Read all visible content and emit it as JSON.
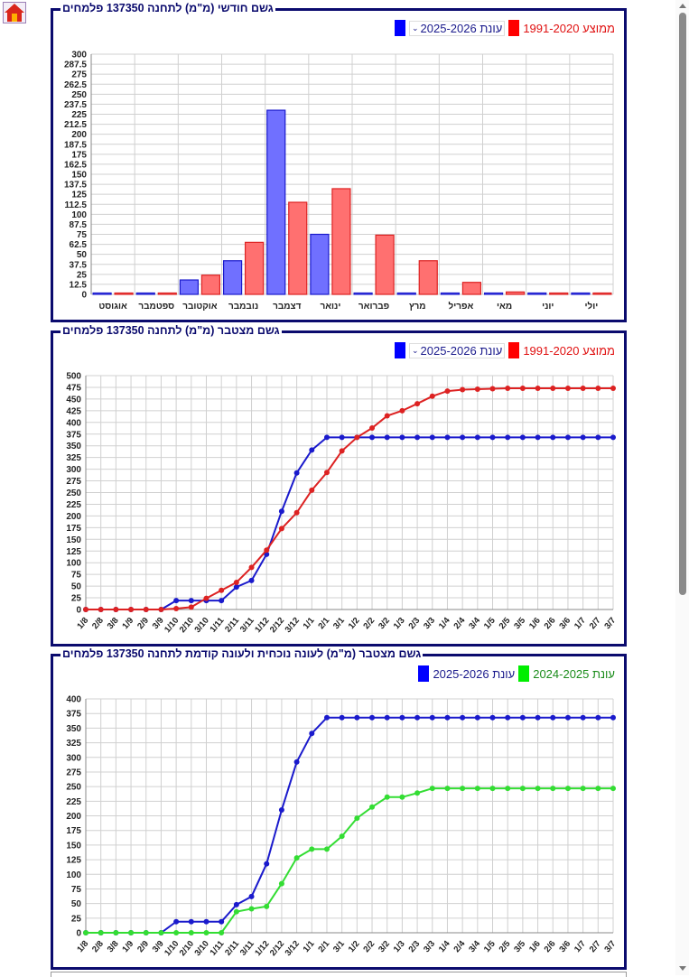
{
  "home_button": {
    "icon": "home-icon"
  },
  "colors": {
    "blue": "#0000ff",
    "red": "#ff0000",
    "green": "#00ee00",
    "title": "#0b0b6e"
  },
  "legend": {
    "average_label": "ממוצע 1991-2020",
    "season_select_value": "עונת 2025-2026",
    "season_label": "עונת 2025-2026",
    "previous_season_label": "עונת 2024-2025"
  },
  "chart_data": [
    {
      "type": "bar",
      "title": "גשם חודשי (מ\"מ) לתחנה 137350 פלמחים",
      "categories": [
        "אוגוסט",
        "ספטמבר",
        "אוקטובר",
        "נובמבר",
        "דצמבר",
        "ינואר",
        "פברואר",
        "מרץ",
        "אפריל",
        "מאי",
        "יוני",
        "יולי"
      ],
      "series": [
        {
          "name": "עונת 2025-2026",
          "color": "#0000ff",
          "values": [
            0,
            0,
            18,
            42,
            230,
            75,
            0,
            0,
            0,
            0,
            0,
            0
          ]
        },
        {
          "name": "ממוצע 1991-2020",
          "color": "#ff0000",
          "values": [
            0,
            0,
            24,
            65,
            115,
            132,
            74,
            42,
            15,
            3,
            0,
            0
          ]
        }
      ],
      "ylim": [
        0,
        300
      ],
      "yticks": [
        "0",
        "12.5",
        "25",
        "37.5",
        "50",
        "62.5",
        "75",
        "87.5",
        "100",
        "112.5",
        "125",
        "137.5",
        "150",
        "162.5",
        "175",
        "187.5",
        "200",
        "212.5",
        "225",
        "237.5",
        "250",
        "262.5",
        "275",
        "287.5",
        "300"
      ],
      "grid": true
    },
    {
      "type": "line",
      "title": "גשם מצטבר (מ\"מ) לתחנה 137350 פלמחים",
      "x": [
        "1/8",
        "2/8",
        "3/8",
        "1/9",
        "2/9",
        "3/9",
        "1/10",
        "2/10",
        "3/10",
        "1/11",
        "2/11",
        "3/11",
        "1/12",
        "2/12",
        "3/12",
        "1/1",
        "2/1",
        "3/1",
        "1/2",
        "2/2",
        "3/2",
        "1/3",
        "2/3",
        "3/3",
        "1/4",
        "2/4",
        "3/4",
        "1/5",
        "2/5",
        "3/5",
        "1/6",
        "2/6",
        "3/6",
        "1/7",
        "2/7",
        "3/7"
      ],
      "series": [
        {
          "name": "עונת 2025-2026",
          "color": "#0000ff",
          "values": [
            0,
            0,
            0,
            0,
            0,
            0,
            19,
            19,
            19,
            19,
            48,
            62,
            118,
            210,
            292,
            341,
            368,
            368,
            368,
            368,
            368,
            368,
            368,
            368,
            368,
            368,
            368,
            368,
            368,
            368,
            368,
            368,
            368,
            368,
            368,
            368
          ]
        },
        {
          "name": "ממוצע 1991-2020",
          "color": "#ff0000",
          "values": [
            0,
            0,
            0,
            0,
            0,
            0,
            2,
            5,
            24,
            41,
            58,
            90,
            127,
            173,
            207,
            255,
            293,
            339,
            368,
            388,
            414,
            425,
            440,
            456,
            467,
            470,
            471,
            472,
            473,
            473,
            473,
            473,
            473,
            473,
            473,
            473
          ]
        }
      ],
      "ylim": [
        0,
        500
      ],
      "yticks": [
        "0",
        "25",
        "50",
        "75",
        "100",
        "125",
        "150",
        "175",
        "200",
        "225",
        "250",
        "275",
        "300",
        "325",
        "350",
        "375",
        "400",
        "425",
        "450",
        "475",
        "500"
      ],
      "grid": true
    },
    {
      "type": "line",
      "title": "גשם מצטבר (מ\"מ) לעונה נוכחית ולעונה קודמת לתחנה 137350 פלמחים",
      "x": [
        "1/8",
        "2/8",
        "3/8",
        "1/9",
        "2/9",
        "3/9",
        "1/10",
        "2/10",
        "3/10",
        "1/11",
        "2/11",
        "3/11",
        "1/12",
        "2/12",
        "3/12",
        "1/1",
        "2/1",
        "3/1",
        "1/2",
        "2/2",
        "3/2",
        "1/3",
        "2/3",
        "3/3",
        "1/4",
        "2/4",
        "3/4",
        "1/5",
        "2/5",
        "3/5",
        "1/6",
        "2/6",
        "3/6",
        "1/7",
        "2/7",
        "3/7"
      ],
      "series": [
        {
          "name": "עונת 2025-2026",
          "color": "#0000ff",
          "values": [
            0,
            0,
            0,
            0,
            0,
            0,
            19,
            19,
            19,
            19,
            48,
            62,
            118,
            210,
            292,
            341,
            368,
            368,
            368,
            368,
            368,
            368,
            368,
            368,
            368,
            368,
            368,
            368,
            368,
            368,
            368,
            368,
            368,
            368,
            368,
            368
          ]
        },
        {
          "name": "עונת 2024-2025",
          "color": "#00ee00",
          "values": [
            0,
            0,
            0,
            0,
            0,
            0,
            0,
            0,
            0,
            0,
            36,
            41,
            45,
            84,
            128,
            143,
            143,
            165,
            196,
            215,
            232,
            232,
            239,
            247,
            247,
            247,
            247,
            247,
            247,
            247,
            247,
            247,
            247,
            247,
            247,
            247
          ]
        }
      ],
      "ylim": [
        0,
        400
      ],
      "yticks": [
        "0",
        "25",
        "50",
        "75",
        "100",
        "125",
        "150",
        "175",
        "200",
        "225",
        "250",
        "275",
        "300",
        "325",
        "350",
        "375",
        "400"
      ],
      "grid": true
    }
  ]
}
